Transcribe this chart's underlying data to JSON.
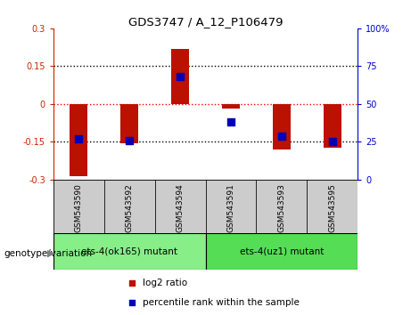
{
  "title": "GDS3747 / A_12_P106479",
  "samples": [
    "GSM543590",
    "GSM543592",
    "GSM543594",
    "GSM543591",
    "GSM543593",
    "GSM543595"
  ],
  "log2_ratio": [
    -0.285,
    -0.155,
    0.22,
    -0.02,
    -0.18,
    -0.175
  ],
  "percentile_rank": [
    27,
    26,
    68,
    38,
    29,
    25
  ],
  "ylim_left": [
    -0.3,
    0.3
  ],
  "ylim_right": [
    0,
    100
  ],
  "yticks_left": [
    -0.3,
    -0.15,
    0,
    0.15,
    0.3
  ],
  "yticks_right": [
    0,
    25,
    50,
    75,
    100
  ],
  "groups": [
    {
      "label": "ets-4(ok165) mutant",
      "sample_count": 3,
      "color": "#88ee88"
    },
    {
      "label": "ets-4(uz1) mutant",
      "sample_count": 3,
      "color": "#55dd55"
    }
  ],
  "bar_color": "#bb1100",
  "dot_color": "#0000bb",
  "bg_color": "#ffffff",
  "axis_color_left": "#cc2200",
  "axis_color_right": "#0000cc",
  "bar_width": 0.35,
  "legend_log2_label": "log2 ratio",
  "legend_percentile_label": "percentile rank within the sample",
  "genotype_label": "genotype/variation",
  "sample_bg": "#cccccc",
  "group_border": "#000000"
}
